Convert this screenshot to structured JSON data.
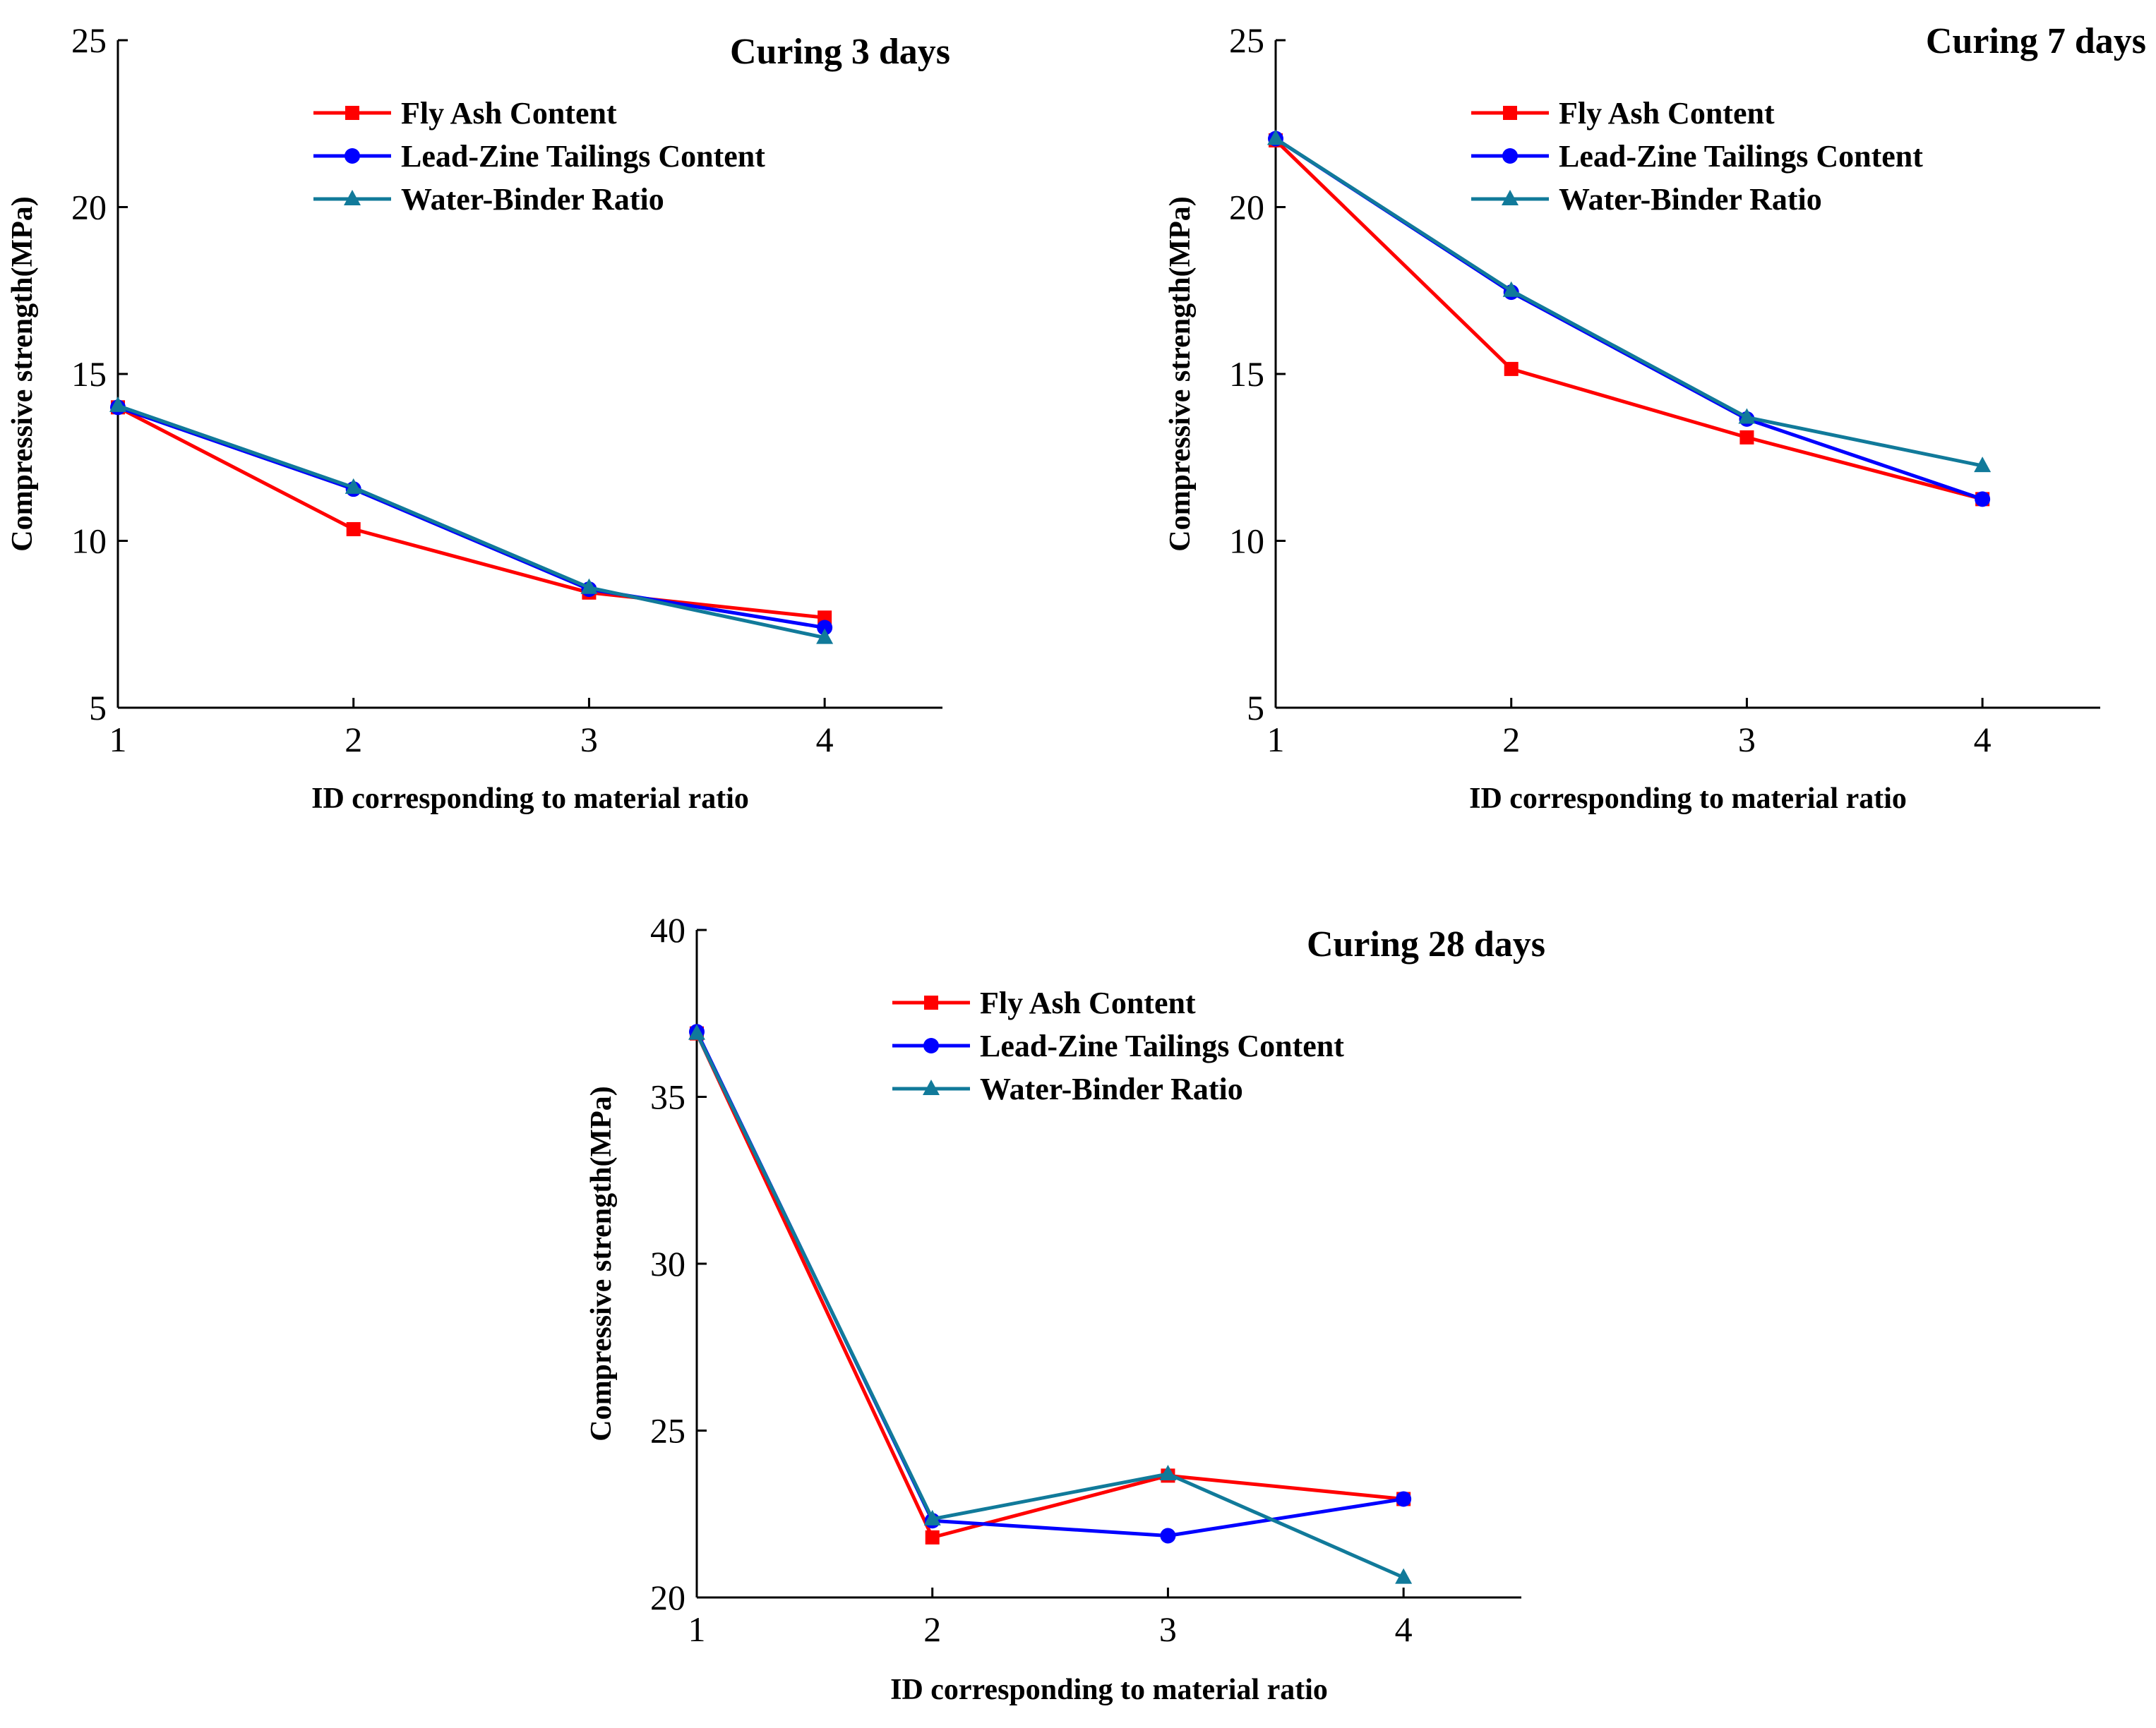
{
  "chart_data": [
    {
      "type": "line",
      "title": "Curing 3 days",
      "xlabel": "ID corresponding to material ratio",
      "ylabel": "Compressive strength(MPa)",
      "x": [
        1,
        2,
        3,
        4
      ],
      "xlim": [
        1,
        4.5
      ],
      "ylim": [
        5,
        25
      ],
      "xticks": [
        "1",
        "2",
        "3",
        "4"
      ],
      "yticks": [
        "5",
        "10",
        "15",
        "20",
        "25"
      ],
      "legend_position": "top",
      "grid": false,
      "series": [
        {
          "name": "Fly Ash Content",
          "color": "#ff0000",
          "marker": "square",
          "values": [
            14.0,
            10.35,
            8.45,
            7.7
          ]
        },
        {
          "name": "Lead-Zine Tailings Content",
          "color": "#0000ff",
          "marker": "circle",
          "values": [
            14.0,
            11.55,
            8.55,
            7.4
          ]
        },
        {
          "name": "Water-Binder Ratio",
          "color": "#117a9a",
          "marker": "triangle",
          "values": [
            14.05,
            11.6,
            8.6,
            7.1
          ]
        }
      ]
    },
    {
      "type": "line",
      "title": "Curing 7 days",
      "xlabel": "ID corresponding to material ratio",
      "ylabel": "Compressive strength(MPa)",
      "x": [
        1,
        2,
        3,
        4
      ],
      "xlim": [
        1,
        4.5
      ],
      "ylim": [
        5,
        25
      ],
      "xticks": [
        "1",
        "2",
        "3",
        "4"
      ],
      "yticks": [
        "5",
        "10",
        "15",
        "20",
        "25"
      ],
      "legend_position": "top",
      "grid": false,
      "series": [
        {
          "name": "Fly Ash Content",
          "color": "#ff0000",
          "marker": "square",
          "values": [
            22.0,
            15.15,
            13.1,
            11.25
          ]
        },
        {
          "name": "Lead-Zine Tailings Content",
          "color": "#0000ff",
          "marker": "circle",
          "values": [
            22.05,
            17.45,
            13.65,
            11.25
          ]
        },
        {
          "name": "Water-Binder Ratio",
          "color": "#117a9a",
          "marker": "triangle",
          "values": [
            22.05,
            17.5,
            13.7,
            12.25
          ]
        }
      ]
    },
    {
      "type": "line",
      "title": "Curing 28 days",
      "xlabel": "ID corresponding to material ratio",
      "ylabel": "Compressive strength(MPa)",
      "x": [
        1,
        2,
        3,
        4
      ],
      "xlim": [
        1,
        4.5
      ],
      "ylim": [
        20,
        40
      ],
      "xticks": [
        "1",
        "2",
        "3",
        "4"
      ],
      "yticks": [
        "20",
        "25",
        "30",
        "35",
        "40"
      ],
      "legend_position": "top",
      "grid": false,
      "series": [
        {
          "name": "Fly Ash Content",
          "color": "#ff0000",
          "marker": "square",
          "values": [
            36.9,
            21.8,
            23.65,
            22.95
          ]
        },
        {
          "name": "Lead-Zine Tailings Content",
          "color": "#0000ff",
          "marker": "circle",
          "values": [
            36.95,
            22.3,
            21.85,
            22.95
          ]
        },
        {
          "name": "Water-Binder Ratio",
          "color": "#117a9a",
          "marker": "triangle",
          "values": [
            36.9,
            22.35,
            23.7,
            20.6
          ]
        }
      ]
    }
  ]
}
